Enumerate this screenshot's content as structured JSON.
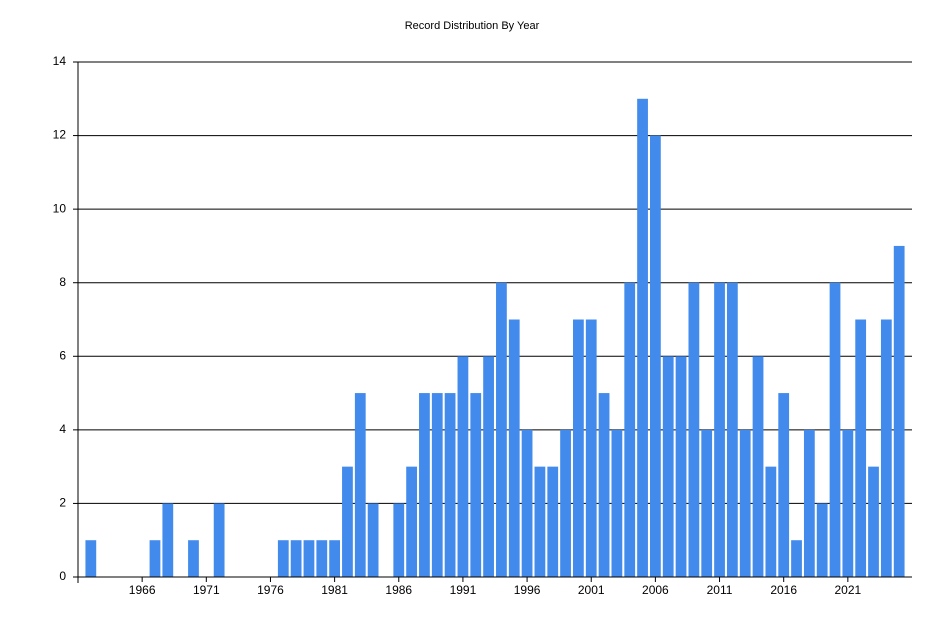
{
  "chart_data": {
    "type": "bar",
    "title": "Record Distribution By Year",
    "x": [
      1962,
      1967,
      1968,
      1970,
      1972,
      1977,
      1978,
      1979,
      1980,
      1981,
      1982,
      1983,
      1984,
      1986,
      1987,
      1988,
      1989,
      1990,
      1991,
      1992,
      1993,
      1994,
      1995,
      1996,
      1997,
      1998,
      1999,
      2000,
      2001,
      2002,
      2003,
      2004,
      2005,
      2006,
      2007,
      2008,
      2009,
      2010,
      2011,
      2012,
      2013,
      2014,
      2015,
      2016,
      2017,
      2018,
      2019,
      2020,
      2021,
      2022,
      2023,
      2024,
      2025
    ],
    "values": [
      1,
      1,
      2,
      1,
      2,
      1,
      1,
      1,
      1,
      1,
      3,
      5,
      2,
      2,
      3,
      5,
      5,
      5,
      6,
      5,
      6,
      8,
      7,
      4,
      3,
      3,
      4,
      7,
      7,
      5,
      4,
      8,
      13,
      12,
      6,
      6,
      8,
      4,
      8,
      8,
      4,
      6,
      3,
      5,
      1,
      4,
      2,
      8,
      4,
      7,
      3,
      7,
      9
    ],
    "color": "#428bec",
    "xlim": [
      1961,
      2026
    ],
    "xticks": [
      1966,
      1971,
      1976,
      1981,
      1986,
      1991,
      1996,
      2001,
      2006,
      2011,
      2016,
      2021
    ],
    "ylim": [
      0,
      14
    ],
    "yticks": [
      0,
      2,
      4,
      6,
      8,
      10,
      12,
      14
    ],
    "grid": true
  }
}
